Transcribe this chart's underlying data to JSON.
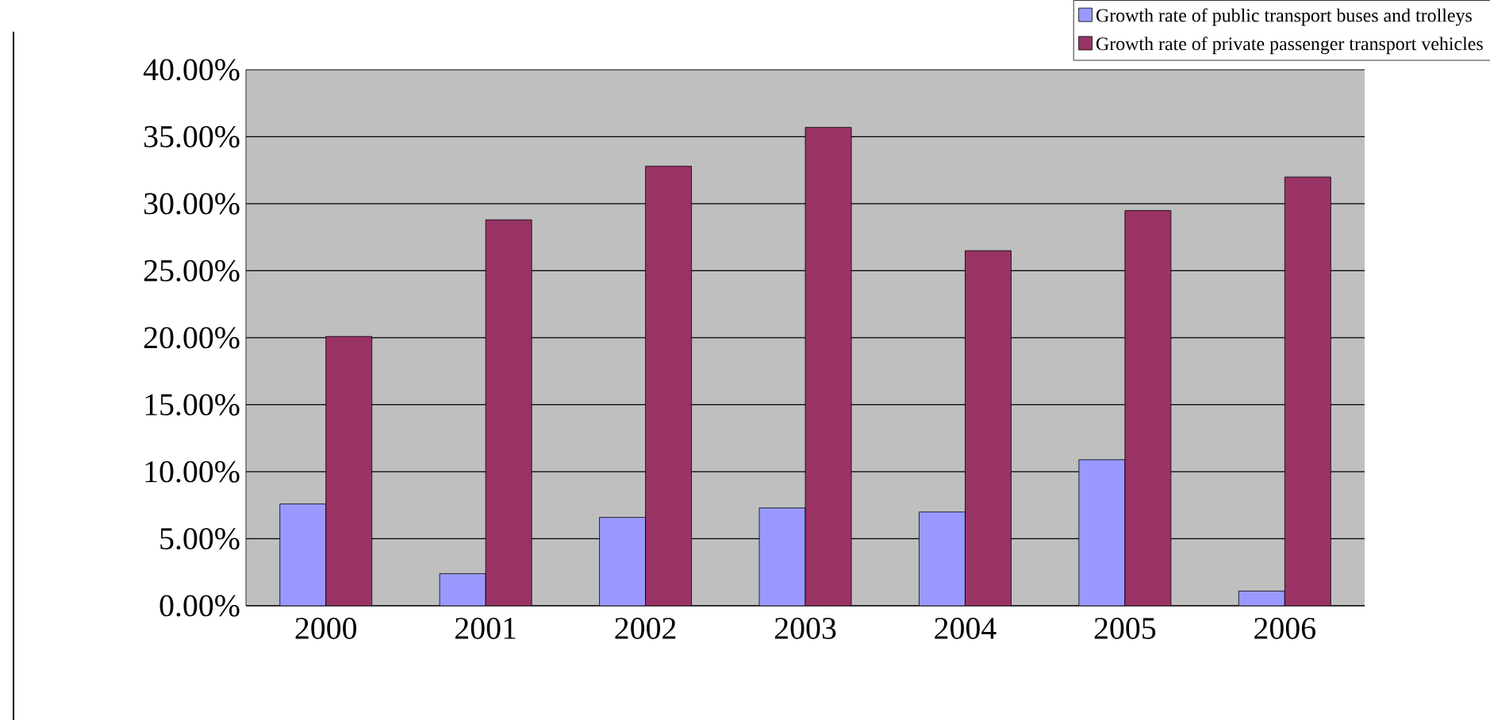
{
  "chart_data": {
    "type": "bar",
    "categories": [
      "2000",
      "2001",
      "2002",
      "2003",
      "2004",
      "2005",
      "2006"
    ],
    "series": [
      {
        "name": "Growth rate of public transport buses and trolleys",
        "color": "#9999ff",
        "values": [
          7.6,
          2.4,
          6.6,
          7.3,
          7.0,
          10.9,
          1.1
        ]
      },
      {
        "name": "Growth rate of private passenger transport vehicles",
        "color": "#993366",
        "values": [
          20.1,
          28.8,
          32.8,
          35.7,
          26.5,
          29.5,
          32.0
        ]
      }
    ],
    "ylim": [
      0,
      40
    ],
    "yticks": [
      {
        "value": 0,
        "label": "0.00%"
      },
      {
        "value": 5,
        "label": "5.00%"
      },
      {
        "value": 10,
        "label": "10.00%"
      },
      {
        "value": 15,
        "label": "15.00%"
      },
      {
        "value": 20,
        "label": "20.00%"
      },
      {
        "value": 25,
        "label": "25.00%"
      },
      {
        "value": 30,
        "label": "30.00%"
      },
      {
        "value": 35,
        "label": "35.00%"
      },
      {
        "value": 40,
        "label": "40.00%"
      }
    ],
    "grid": "y",
    "legend": "top right"
  }
}
